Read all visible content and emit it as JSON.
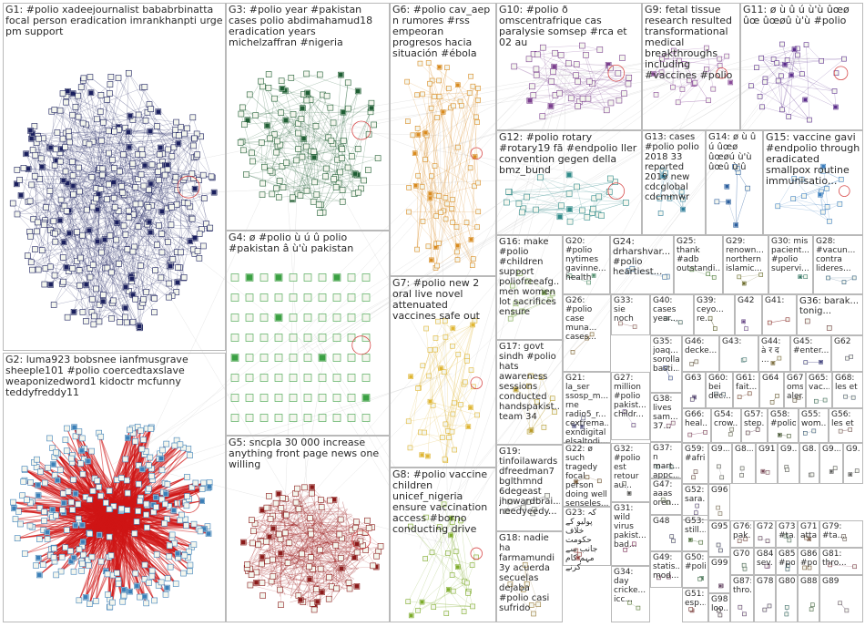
{
  "image": {
    "title": ""
  },
  "groups": [
    {
      "id": "G1",
      "label": "G1: #polio xadeejournalist bababrbinatta focal person eradication imrankhanpti urge pm support",
      "color": "#1a1f5e"
    },
    {
      "id": "G2",
      "label": "G2: luma923 bobsnee ianfmusgrave sheeple101 #polio coercedtaxslave weaponizedword1 kidoctr mcfunny teddyfreddy11",
      "color": "#3b7fb8"
    },
    {
      "id": "G3",
      "label": "G3: #polio year #pakistan cases polio abdimahamud18 eradication years michelzaffran #nigeria",
      "color": "#1f5e34"
    },
    {
      "id": "G4",
      "label": "G4: ø #polio ù ú û polio #pakistan â ù'ù pakistan",
      "color": "#3aa043"
    },
    {
      "id": "G5",
      "label": "G5: sncpla 30 000 increase anything front page news one willing",
      "color": "#8b1a1a"
    },
    {
      "id": "G6",
      "label": "G6: #polio cav_aep n rumores #rss empeoran progresos hacia situación #ébola",
      "color": "#d98a1f"
    },
    {
      "id": "G7",
      "label": "G7: #polio new 2 oral live novel attenuated vaccines safe out",
      "color": "#e0b531"
    },
    {
      "id": "G8",
      "label": "G8: #polio vaccine children unicef_nigeria ensure vaccination access #borno conducting drive",
      "color": "#7dac2a"
    },
    {
      "id": "G9",
      "label": "G9: fetal tissue research resulted transformational medical breakthroughs including #vaccines #polio",
      "color": "#8a4a9a"
    },
    {
      "id": "G10",
      "label": "G10: #polio ð omscentrafrique cas paralysie somsep #rca et 02 au",
      "color": "#7b3f8f"
    },
    {
      "id": "G11",
      "label": "G11: ø ù û ú ù'ù ûœø ûœ ûœøû ù'ù #polio",
      "color": "#5a2b8c"
    },
    {
      "id": "G12",
      "label": "G12: #polio rotary #rotary19 fã #endpolio ller convention gegen della bmz_bund",
      "color": "#2f8a8a"
    },
    {
      "id": "G13",
      "label": "G13: cases #polio polio 2018 33 reported 2019 new cdcglobal cdcmmwr",
      "color": "#2a7b9a"
    },
    {
      "id": "G14",
      "label": "G14: ø ù û ú ûœø ûœøú ù'ù ûœû ù'û",
      "color": "#2b5fa0"
    },
    {
      "id": "G15",
      "label": "G15: vaccine gavi #endpolio through eradicated smallpox routine immunisatio...",
      "color": "#3a7ec0"
    },
    {
      "id": "G16",
      "label": "G16: make #polio #children support poliofreeafg... men women lot sacrifices ensure",
      "color": "#7aa84a"
    },
    {
      "id": "G17",
      "label": "G17: govt sindh #polio hats awareness sessions conducted handspakist... team 34",
      "color": "#b89a2a"
    },
    {
      "id": "G18",
      "label": "G18: nadie ha farmamundi 3y acuerda secuelas dejaba #polio casi sufrido",
      "color": "#9a7a3a"
    },
    {
      "id": "G19",
      "label": "G19: tinfoilawards dfreedman7 bglthmnd 6degeast jhowardbrai... needyeedy...",
      "color": "#6a6a6a"
    },
    {
      "id": "G20",
      "label": "G20: #polio nytimes gavinne... health",
      "color": "#4a8a6a"
    },
    {
      "id": "G21",
      "label": "G21: la_ser ssosp_m... rne radio5_r... cextrema... exndigital elsaltodi...",
      "color": "#5a5a8a"
    },
    {
      "id": "G22",
      "label": "G22: ø such tragedy focal person doing well senseles...",
      "color": "#6a4a2a"
    },
    {
      "id": "G23",
      "label": "G23: كہ پولیو کے خلاف حکومت جانب سے مہم کام کرنے",
      "color": "#8a3a3a"
    },
    {
      "id": "G24",
      "label": "G24: drharshvar... #polio heartiest...",
      "color": "#3a6a9a"
    },
    {
      "id": "G25",
      "label": "G25: thank #adb outstandi...",
      "color": "#4a7a3a"
    },
    {
      "id": "G26",
      "label": "G26: #polio case muna... cases...",
      "color": "#7a5a2a"
    },
    {
      "id": "G27",
      "label": "G27: million #polio pakist... childr...",
      "color": "#5a3a7a"
    },
    {
      "id": "G28",
      "label": "G28: #vacun... contra lideres...",
      "color": "#2a5a7a"
    },
    {
      "id": "G29",
      "label": "G29: renown... northern islamic...",
      "color": "#6a6a2a"
    },
    {
      "id": "G30",
      "label": "G30: mis pacient... #polio supervi...",
      "color": "#3a7a6a"
    },
    {
      "id": "G31",
      "label": "G31: wild virus pakist... bad...",
      "color": "#7a2a5a"
    },
    {
      "id": "G32",
      "label": "G32: #polio est retour au...",
      "color": "#4a4a4a"
    },
    {
      "id": "G33",
      "label": "G33: sie noch",
      "color": "#8a5a5a"
    },
    {
      "id": "G34",
      "label": "G34: day cricke... icc...",
      "color": "#5a7a3a"
    },
    {
      "id": "G35",
      "label": "G35: joaq... sorolla basti...",
      "color": "#3a4a8a"
    },
    {
      "id": "G36",
      "label": "G36: barak... tonig...",
      "color": "#6a3a3a"
    },
    {
      "id": "G37",
      "label": "G37: n mart... appc...",
      "color": "#4a6a6a"
    },
    {
      "id": "G38",
      "label": "G38: lives sam... 37...",
      "color": "#7a4a6a"
    },
    {
      "id": "G39",
      "label": "G39: ceyo... re...",
      "color": "#5a5a2a"
    },
    {
      "id": "G40",
      "label": "G40: cases year...",
      "color": "#3a5a5a"
    },
    {
      "id": "G41",
      "label": "G41:",
      "color": "#8a2a2a"
    },
    {
      "id": "G42",
      "label": "G42",
      "color": "#6a4a8a"
    },
    {
      "id": "G43",
      "label": "G43:",
      "color": "#4a7a7a"
    },
    {
      "id": "G44",
      "label": "G44: à र द ...",
      "color": "#7a6a3a"
    },
    {
      "id": "G45",
      "label": "G45: #enter...",
      "color": "#3a3a7a"
    },
    {
      "id": "G46",
      "label": "G46: decke...",
      "color": "#6a5a4a"
    },
    {
      "id": "G47",
      "label": "G47: aaas oren...",
      "color": "#5a6a4a"
    },
    {
      "id": "G48",
      "label": "G48",
      "color": "#4a4a6a"
    },
    {
      "id": "G49",
      "label": "G49: statis... mod...",
      "color": "#6a3a5a"
    },
    {
      "id": "G50",
      "label": "G50: #poli...",
      "color": "#3a6a4a"
    },
    {
      "id": "G51",
      "label": "G51: esp...",
      "color": "#7a3a3a"
    },
    {
      "id": "G52",
      "label": "G52: sara...",
      "color": "#5a4a7a"
    },
    {
      "id": "G53",
      "label": "G53: still...",
      "color": "#4a6a3a"
    },
    {
      "id": "G54",
      "label": "G54: crow...",
      "color": "#6a6a5a"
    },
    {
      "id": "G55",
      "label": "G55: wom...",
      "color": "#3a5a7a"
    },
    {
      "id": "G56",
      "label": "G56: les et",
      "color": "#7a5a5a"
    },
    {
      "id": "G57",
      "label": "G57: step...",
      "color": "#5a3a4a"
    },
    {
      "id": "G58",
      "label": "G58: #polio...",
      "color": "#4a5a3a"
    },
    {
      "id": "G59",
      "label": "G59: #afri...",
      "color": "#6a4a4a"
    },
    {
      "id": "G60",
      "label": "G60: bei dec...",
      "color": "#3a4a5a"
    },
    {
      "id": "G61",
      "label": "G61: fait...",
      "color": "#7a4a3a"
    },
    {
      "id": "G62",
      "label": "G62",
      "color": "#5a5a6a"
    },
    {
      "id": "G63",
      "label": "G63",
      "color": "#4a3a6a"
    },
    {
      "id": "G64",
      "label": "G64",
      "color": "#6a5a3a"
    },
    {
      "id": "G65",
      "label": "G65: vac...",
      "color": "#3a6a5a"
    },
    {
      "id": "G66",
      "label": "G66: heal...",
      "color": "#7a3a5a"
    },
    {
      "id": "G67",
      "label": "G67: oms aler...",
      "color": "#5a4a3a"
    },
    {
      "id": "G68",
      "label": "G68: les et",
      "color": "#4a5a6a"
    },
    {
      "id": "G69",
      "label": "G69",
      "color": "#6a3a4a"
    },
    {
      "id": "G70",
      "label": "G70",
      "color": "#3a5a4a"
    },
    {
      "id": "G71",
      "label": "G71: atta...",
      "color": "#7a5a4a"
    },
    {
      "id": "G72",
      "label": "G72",
      "color": "#5a3a5a"
    },
    {
      "id": "G73",
      "label": "G73: #ta...",
      "color": "#4a6a5a"
    },
    {
      "id": "G74",
      "label": "G74",
      "color": "#6a4a5a"
    },
    {
      "id": "G75",
      "label": "G75",
      "color": "#3a4a6a"
    },
    {
      "id": "G76",
      "label": "G76: pak...",
      "color": "#7a4a4a"
    },
    {
      "id": "G77",
      "label": "G77",
      "color": "#5a5a4a"
    },
    {
      "id": "G78",
      "label": "G78",
      "color": "#4a3a5a"
    },
    {
      "id": "G79",
      "label": "G79: #ta...",
      "color": "#6a5a5a"
    },
    {
      "id": "G80",
      "label": "G80",
      "color": "#3a6a6a"
    },
    {
      "id": "G81",
      "label": "G81: thro...",
      "color": "#7a3a4a"
    },
    {
      "id": "G82",
      "label": "G82",
      "color": "#5a4a5a"
    },
    {
      "id": "G83",
      "label": "G83",
      "color": "#4a5a5a"
    },
    {
      "id": "G84",
      "label": "G84: sev...",
      "color": "#6a3a6a"
    },
    {
      "id": "G85",
      "label": "G85: #po...",
      "color": "#3a5a6a"
    },
    {
      "id": "G86",
      "label": "G86: #po...",
      "color": "#7a5a3a"
    },
    {
      "id": "G87",
      "label": "G87: thro...",
      "color": "#5a3a6a"
    },
    {
      "id": "G88",
      "label": "G88",
      "color": "#4a6a4a"
    },
    {
      "id": "G89",
      "label": "G89",
      "color": "#6a5a6a"
    },
    {
      "id": "G90",
      "label": "G90",
      "color": "#3a4a4a"
    },
    {
      "id": "G91",
      "label": "G91",
      "color": "#7a4a5a"
    },
    {
      "id": "G92",
      "label": "G92",
      "color": "#5a5a5a"
    },
    {
      "id": "G93",
      "label": "G93",
      "color": "#4a4a5a"
    },
    {
      "id": "G94",
      "label": "G94",
      "color": "#6a6a4a"
    },
    {
      "id": "G95",
      "label": "G95",
      "color": "#3a3a5a"
    },
    {
      "id": "G96",
      "label": "G96",
      "color": "#7a6a5a"
    },
    {
      "id": "G97",
      "label": "G97",
      "color": "#5a6a5a"
    },
    {
      "id": "G98",
      "label": "G98: loo...",
      "color": "#4a3a4a"
    },
    {
      "id": "G99",
      "label": "G99",
      "color": "#6a4a6a"
    }
  ]
}
